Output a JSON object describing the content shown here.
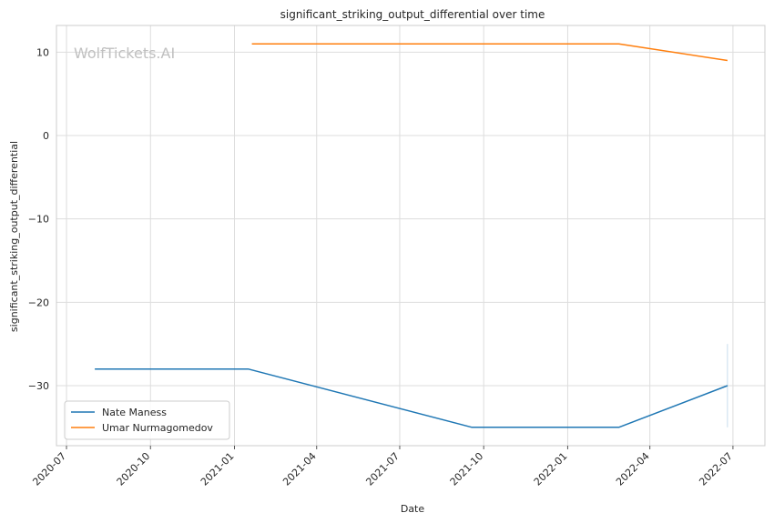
{
  "chart_data": {
    "type": "line",
    "title": "significant_striking_output_differential over time",
    "xlabel": "Date",
    "ylabel": "significant_striking_output_differential",
    "watermark": "WolfTickets.AI",
    "x_ticks": [
      "2020-07",
      "2020-10",
      "2021-01",
      "2021-04",
      "2021-07",
      "2021-10",
      "2022-01",
      "2022-04",
      "2022-07"
    ],
    "y_ticks": [
      -30,
      -20,
      -10,
      0,
      10
    ],
    "xlim": [
      "2020-06-20",
      "2022-08-05"
    ],
    "ylim": [
      -37.2,
      13.2
    ],
    "grid": true,
    "legend_position": "lower-left",
    "series": [
      {
        "name": "Nate Maness",
        "color": "#1f77b4",
        "x": [
          "2020-08-01",
          "2021-01-16",
          "2021-09-18",
          "2022-02-26",
          "2022-06-25"
        ],
        "y": [
          -28,
          -28,
          -35,
          -35,
          -30
        ]
      },
      {
        "name": "Umar Nurmagomedov",
        "color": "#ff7f0e",
        "x": [
          "2021-01-20",
          "2022-02-26",
          "2022-06-25"
        ],
        "y": [
          11,
          11,
          9
        ]
      }
    ],
    "error_band": {
      "x": "2022-06-25",
      "y_low": -35,
      "y_high": -25,
      "color": "#1f77b4"
    }
  }
}
